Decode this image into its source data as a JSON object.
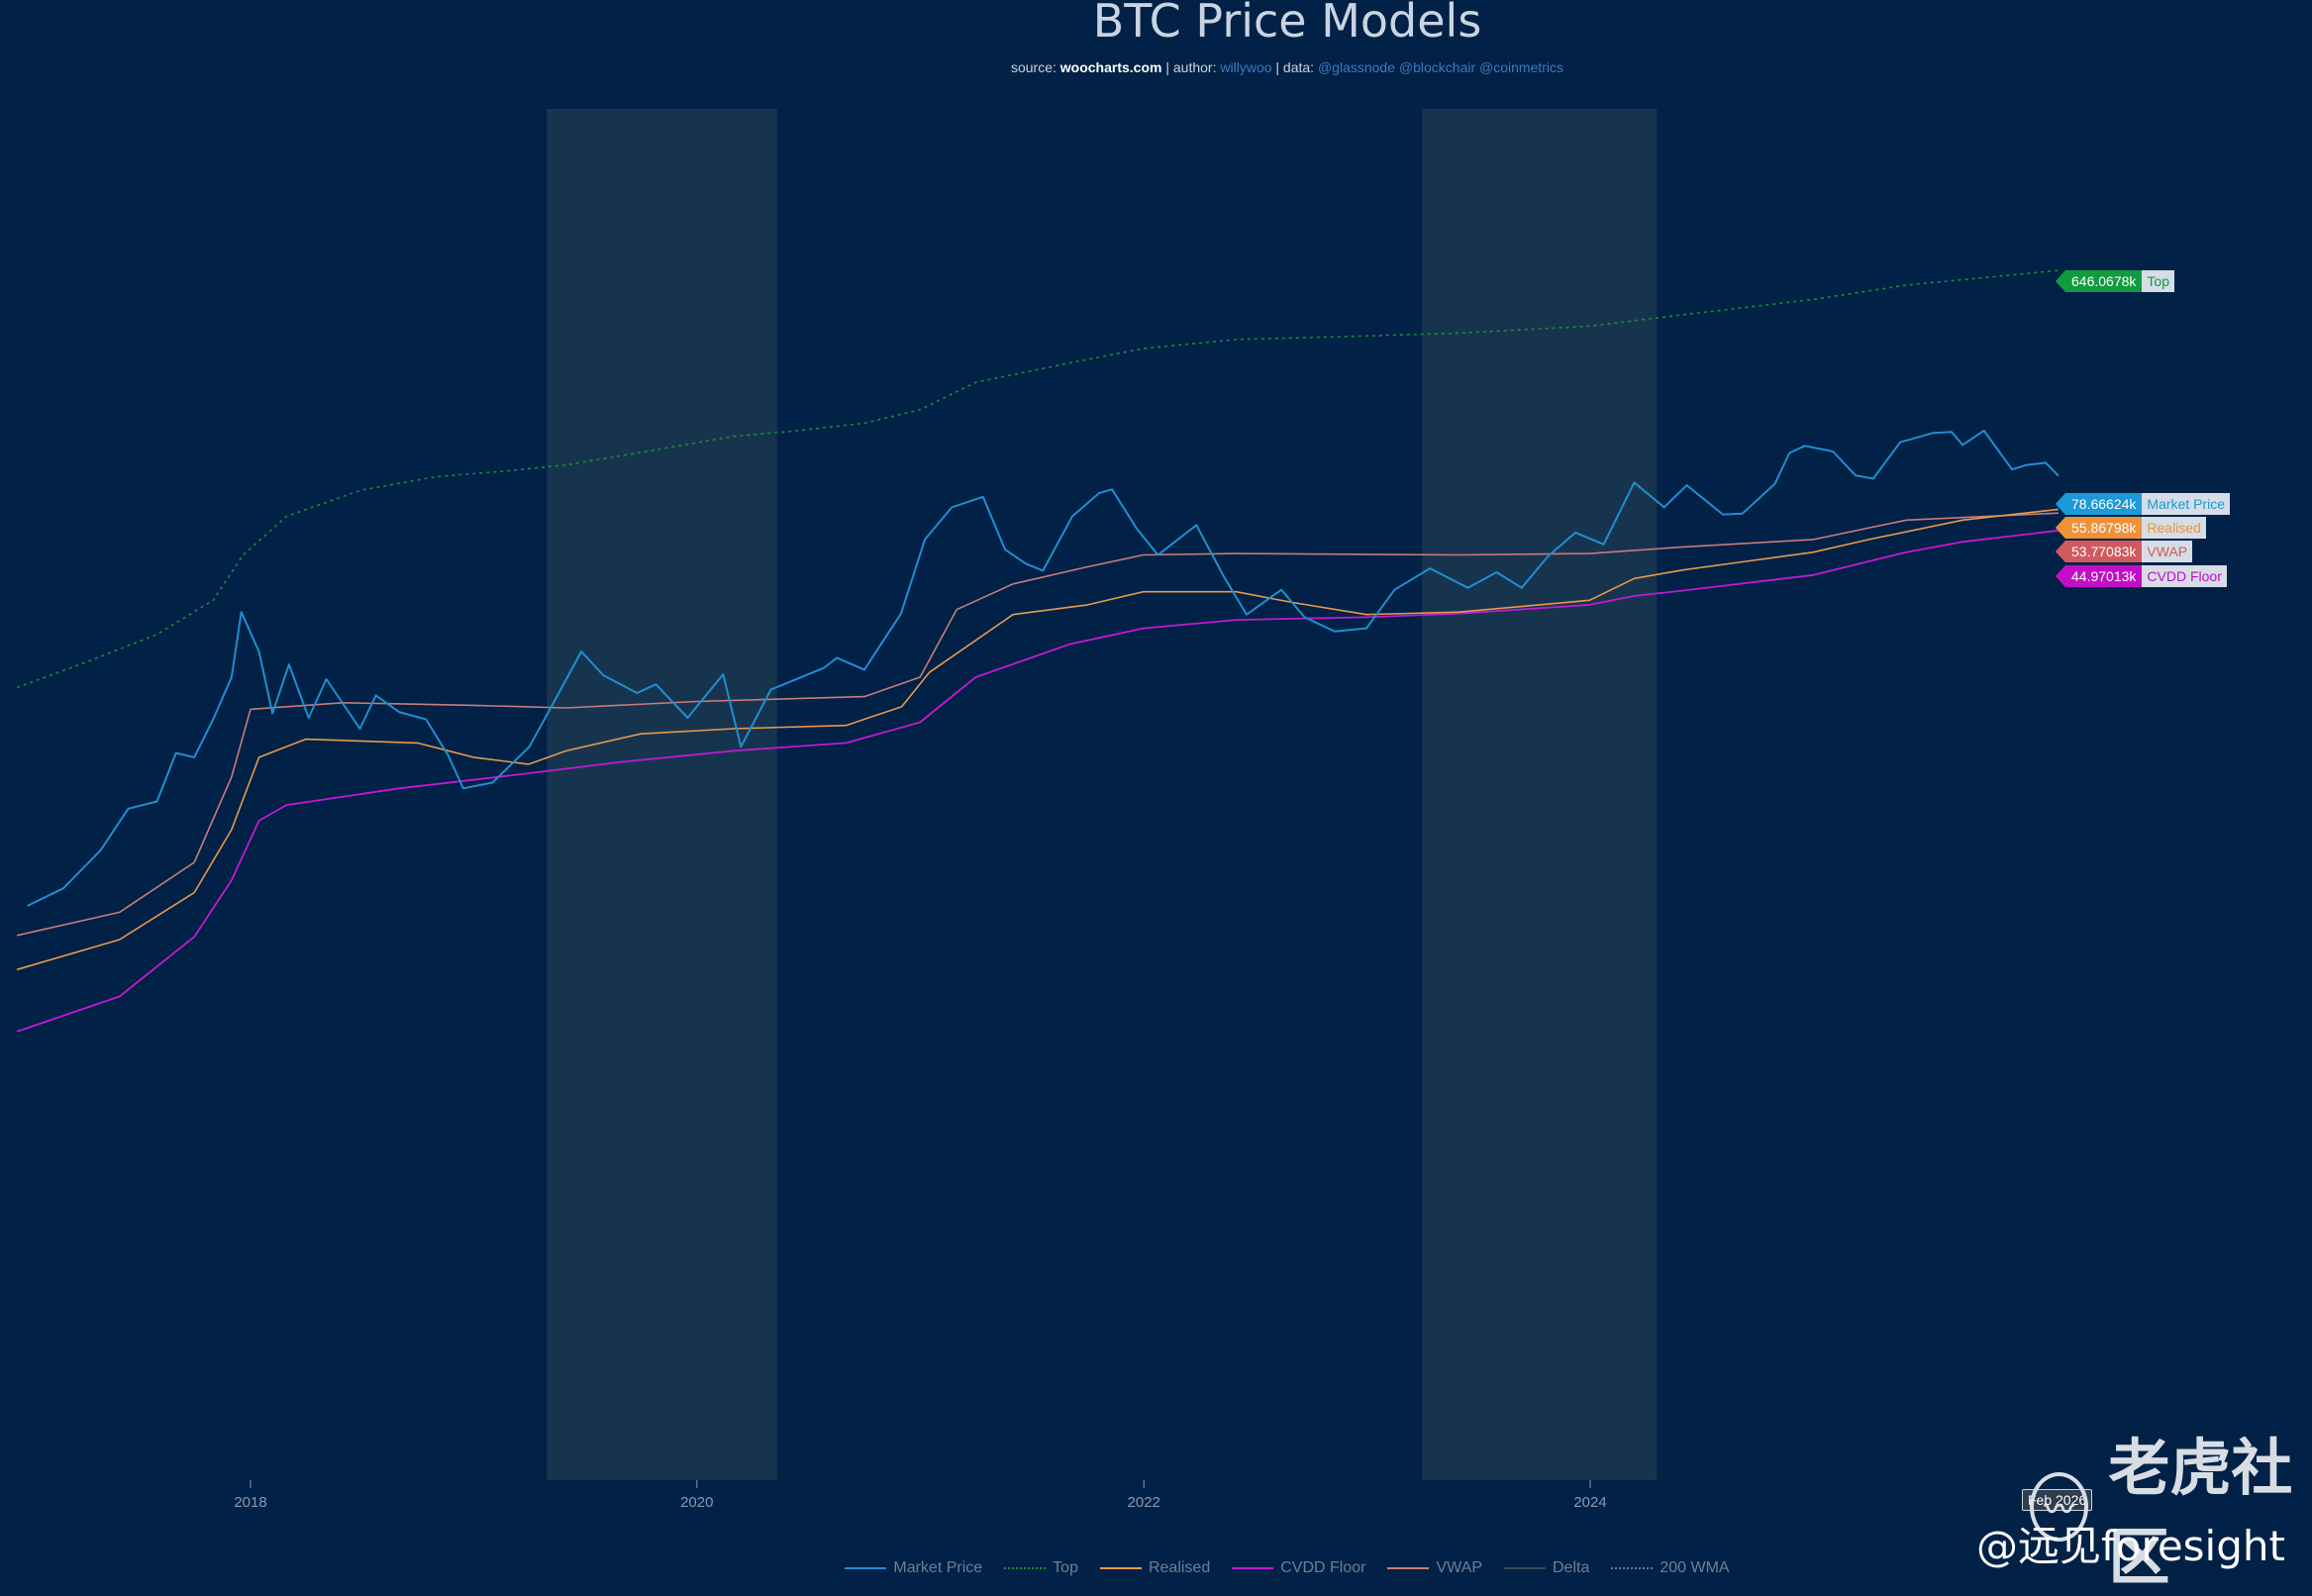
{
  "header": {
    "title": "BTC Price Models",
    "source_prefix": "source: ",
    "source_site": "woocharts.com",
    "author_prefix": " | author: ",
    "author": "willywoo",
    "data_prefix": " | data: ",
    "data_sources": "@glassnode @blockchair @coinmetrics"
  },
  "hover_label": "Feb 2026",
  "watermark": {
    "brand": "老虎社区",
    "handle": "@远见foresight"
  },
  "colors": {
    "background": "#012146",
    "shade": "#17344f",
    "market_price": "#1f8fd0",
    "top": "#1a8c3a",
    "realised": "#e89a4c",
    "cvdd": "#c21bd1",
    "vwap": "#c97b7b",
    "delta": "#3a4a58",
    "wma200": "#6a7a8c"
  },
  "chart_data": {
    "type": "line",
    "title": "BTC Price Models",
    "xlabel": "",
    "ylabel": "",
    "y_scale": "log",
    "x_range": [
      "2016-12-15",
      "2026-08-01"
    ],
    "y_range_approx": [
      1000,
      1000000
    ],
    "x_tick_labels": [
      "2018",
      "2020",
      "2022",
      "2024"
    ],
    "grid": false,
    "legend_position": "bottom",
    "shaded_periods": [
      [
        "2019-05-01",
        "2020-05-11"
      ],
      [
        "2023-04-01",
        "2024-04-19"
      ]
    ],
    "last_values": [
      {
        "series": "Top",
        "value": "646.0678k"
      },
      {
        "series": "Market Price",
        "value": "78.66624k"
      },
      {
        "series": "Realised",
        "value": "55.86798k"
      },
      {
        "series": "VWAP",
        "value": "53.77083k"
      },
      {
        "series": "CVDD Floor",
        "value": "44.97013k"
      }
    ],
    "legend": [
      "Market Price",
      "Top",
      "Realised",
      "CVDD Floor",
      "VWAP",
      "Delta",
      "200 WMA"
    ],
    "series": [
      {
        "name": "Market Price",
        "style": "solid",
        "points": [
          [
            "2017-01-01",
            960
          ],
          [
            "2017-03-01",
            1150
          ],
          [
            "2017-05-01",
            1700
          ],
          [
            "2017-06-15",
            2600
          ],
          [
            "2017-08-01",
            2800
          ],
          [
            "2017-09-01",
            4600
          ],
          [
            "2017-10-01",
            4400
          ],
          [
            "2017-11-01",
            6500
          ],
          [
            "2017-12-01",
            10000
          ],
          [
            "2017-12-17",
            19500
          ],
          [
            "2018-01-15",
            13000
          ],
          [
            "2018-02-06",
            6900
          ],
          [
            "2018-03-05",
            11400
          ],
          [
            "2018-04-06",
            6600
          ],
          [
            "2018-05-05",
            9800
          ],
          [
            "2018-06-29",
            5900
          ],
          [
            "2018-07-25",
            8300
          ],
          [
            "2018-09-01",
            7000
          ],
          [
            "2018-10-15",
            6500
          ],
          [
            "2018-11-20",
            4500
          ],
          [
            "2018-12-15",
            3200
          ],
          [
            "2019-02-01",
            3400
          ],
          [
            "2019-04-02",
            4900
          ],
          [
            "2019-05-15",
            8000
          ],
          [
            "2019-06-26",
            13000
          ],
          [
            "2019-08-01",
            10200
          ],
          [
            "2019-09-25",
            8500
          ],
          [
            "2019-10-26",
            9300
          ],
          [
            "2019-12-17",
            6600
          ],
          [
            "2020-02-13",
            10300
          ],
          [
            "2020-03-13",
            4900
          ],
          [
            "2020-05-01",
            8800
          ],
          [
            "2020-07-27",
            11000
          ],
          [
            "2020-08-17",
            12200
          ],
          [
            "2020-10-01",
            10800
          ],
          [
            "2020-11-30",
            19200
          ],
          [
            "2021-01-08",
            41000
          ],
          [
            "2021-02-21",
            57000
          ],
          [
            "2021-04-13",
            63500
          ],
          [
            "2021-05-19",
            37000
          ],
          [
            "2021-06-22",
            32000
          ],
          [
            "2021-07-20",
            29800
          ],
          [
            "2021-09-06",
            52000
          ],
          [
            "2021-10-20",
            66000
          ],
          [
            "2021-11-10",
            68500
          ],
          [
            "2021-12-20",
            46000
          ],
          [
            "2022-01-24",
            35000
          ],
          [
            "2022-03-28",
            47500
          ],
          [
            "2022-05-12",
            28000
          ],
          [
            "2022-06-18",
            19000
          ],
          [
            "2022-08-14",
            24500
          ],
          [
            "2022-09-21",
            18500
          ],
          [
            "2022-11-09",
            16000
          ],
          [
            "2022-12-31",
            16500
          ],
          [
            "2023-02-15",
            24500
          ],
          [
            "2023-04-14",
            30500
          ],
          [
            "2023-06-15",
            25000
          ],
          [
            "2023-08-01",
            29300
          ],
          [
            "2023-09-11",
            25000
          ],
          [
            "2023-10-24",
            34500
          ],
          [
            "2023-12-08",
            44000
          ],
          [
            "2024-01-23",
            39000
          ],
          [
            "2024-03-13",
            73500
          ],
          [
            "2024-05-01",
            57000
          ],
          [
            "2024-06-07",
            71500
          ],
          [
            "2024-08-05",
            53000
          ],
          [
            "2024-09-06",
            53500
          ],
          [
            "2024-10-29",
            72500
          ],
          [
            "2024-11-22",
            99500
          ],
          [
            "2024-12-17",
            107000
          ],
          [
            "2025-02-01",
            101000
          ],
          [
            "2025-03-10",
            79000
          ],
          [
            "2025-04-08",
            76500
          ],
          [
            "2025-05-22",
            111000
          ],
          [
            "2025-07-14",
            122000
          ],
          [
            "2025-08-14",
            123500
          ],
          [
            "2025-09-01",
            108000
          ],
          [
            "2025-10-06",
            125000
          ],
          [
            "2025-11-21",
            84000
          ],
          [
            "2025-12-15",
            88000
          ],
          [
            "2026-01-15",
            90000
          ],
          [
            "2026-02-05",
            78666
          ]
        ]
      },
      {
        "name": "Top",
        "style": "dotted",
        "points": [
          [
            "2016-12-15",
            9000
          ],
          [
            "2017-04-01",
            11500
          ],
          [
            "2017-08-01",
            15500
          ],
          [
            "2017-11-01",
            22000
          ],
          [
            "2017-12-20",
            35000
          ],
          [
            "2018-03-01",
            52000
          ],
          [
            "2018-07-01",
            68000
          ],
          [
            "2018-11-01",
            78000
          ],
          [
            "2019-03-01",
            83000
          ],
          [
            "2019-06-01",
            88000
          ],
          [
            "2019-10-01",
            100000
          ],
          [
            "2020-03-01",
            118000
          ],
          [
            "2020-06-01",
            124000
          ],
          [
            "2020-10-01",
            135000
          ],
          [
            "2020-12-31",
            155000
          ],
          [
            "2021-04-01",
            205000
          ],
          [
            "2021-09-01",
            250000
          ],
          [
            "2021-12-31",
            290000
          ],
          [
            "2022-06-01",
            318000
          ],
          [
            "2022-12-31",
            330000
          ],
          [
            "2023-06-01",
            340000
          ],
          [
            "2023-12-31",
            365000
          ],
          [
            "2024-06-01",
            410000
          ],
          [
            "2024-12-31",
            480000
          ],
          [
            "2025-06-01",
            555000
          ],
          [
            "2026-02-05",
            646068
          ]
        ]
      },
      {
        "name": "Realised",
        "style": "solid",
        "points": [
          [
            "2016-12-15",
            500
          ],
          [
            "2017-06-01",
            680
          ],
          [
            "2017-10-01",
            1100
          ],
          [
            "2017-12-01",
            2100
          ],
          [
            "2018-01-15",
            4400
          ],
          [
            "2018-04-01",
            5300
          ],
          [
            "2018-10-01",
            5100
          ],
          [
            "2019-01-01",
            4400
          ],
          [
            "2019-04-01",
            4100
          ],
          [
            "2019-06-01",
            4700
          ],
          [
            "2019-10-01",
            5600
          ],
          [
            "2020-03-01",
            5900
          ],
          [
            "2020-09-01",
            6100
          ],
          [
            "2020-12-01",
            7400
          ],
          [
            "2021-01-15",
            10500
          ],
          [
            "2021-06-01",
            19000
          ],
          [
            "2021-10-01",
            21000
          ],
          [
            "2021-12-31",
            24000
          ],
          [
            "2022-06-01",
            24000
          ],
          [
            "2022-09-01",
            21500
          ],
          [
            "2022-12-31",
            19000
          ],
          [
            "2023-06-01",
            19500
          ],
          [
            "2023-12-31",
            22000
          ],
          [
            "2024-03-13",
            27500
          ],
          [
            "2024-06-01",
            30000
          ],
          [
            "2024-12-31",
            36000
          ],
          [
            "2025-04-01",
            41000
          ],
          [
            "2025-09-01",
            50000
          ],
          [
            "2026-02-05",
            55868
          ]
        ]
      },
      {
        "name": "VWAP",
        "style": "solid",
        "points": [
          [
            "2016-12-15",
            710
          ],
          [
            "2017-06-01",
            900
          ],
          [
            "2017-10-01",
            1500
          ],
          [
            "2017-12-01",
            3600
          ],
          [
            "2018-01-01",
            7200
          ],
          [
            "2018-06-01",
            7700
          ],
          [
            "2019-01-01",
            7500
          ],
          [
            "2019-06-01",
            7300
          ],
          [
            "2020-01-01",
            7800
          ],
          [
            "2020-10-01",
            8200
          ],
          [
            "2020-12-31",
            10000
          ],
          [
            "2021-03-01",
            20000
          ],
          [
            "2021-06-01",
            26000
          ],
          [
            "2021-10-01",
            31000
          ],
          [
            "2021-12-31",
            35000
          ],
          [
            "2022-06-01",
            35500
          ],
          [
            "2023-06-01",
            35000
          ],
          [
            "2023-12-31",
            35500
          ],
          [
            "2024-06-01",
            38000
          ],
          [
            "2024-12-31",
            41000
          ],
          [
            "2025-06-01",
            50000
          ],
          [
            "2026-02-05",
            53771
          ]
        ]
      },
      {
        "name": "CVDD Floor",
        "style": "solid",
        "points": [
          [
            "2016-12-15",
            265
          ],
          [
            "2017-06-01",
            380
          ],
          [
            "2017-10-01",
            700
          ],
          [
            "2017-12-01",
            1250
          ],
          [
            "2018-01-15",
            2300
          ],
          [
            "2018-03-01",
            2700
          ],
          [
            "2018-09-01",
            3200
          ],
          [
            "2019-03-01",
            3650
          ],
          [
            "2019-09-01",
            4200
          ],
          [
            "2020-03-01",
            4700
          ],
          [
            "2020-09-01",
            5100
          ],
          [
            "2020-12-31",
            6300
          ],
          [
            "2021-04-01",
            10000
          ],
          [
            "2021-09-01",
            14000
          ],
          [
            "2021-12-31",
            16500
          ],
          [
            "2022-06-01",
            18000
          ],
          [
            "2022-12-31",
            18500
          ],
          [
            "2023-06-01",
            19200
          ],
          [
            "2023-12-31",
            21000
          ],
          [
            "2024-03-13",
            23000
          ],
          [
            "2024-06-01",
            24300
          ],
          [
            "2024-12-31",
            28500
          ],
          [
            "2025-06-01",
            36000
          ],
          [
            "2025-09-01",
            40000
          ],
          [
            "2026-02-05",
            44970
          ]
        ]
      }
    ]
  }
}
